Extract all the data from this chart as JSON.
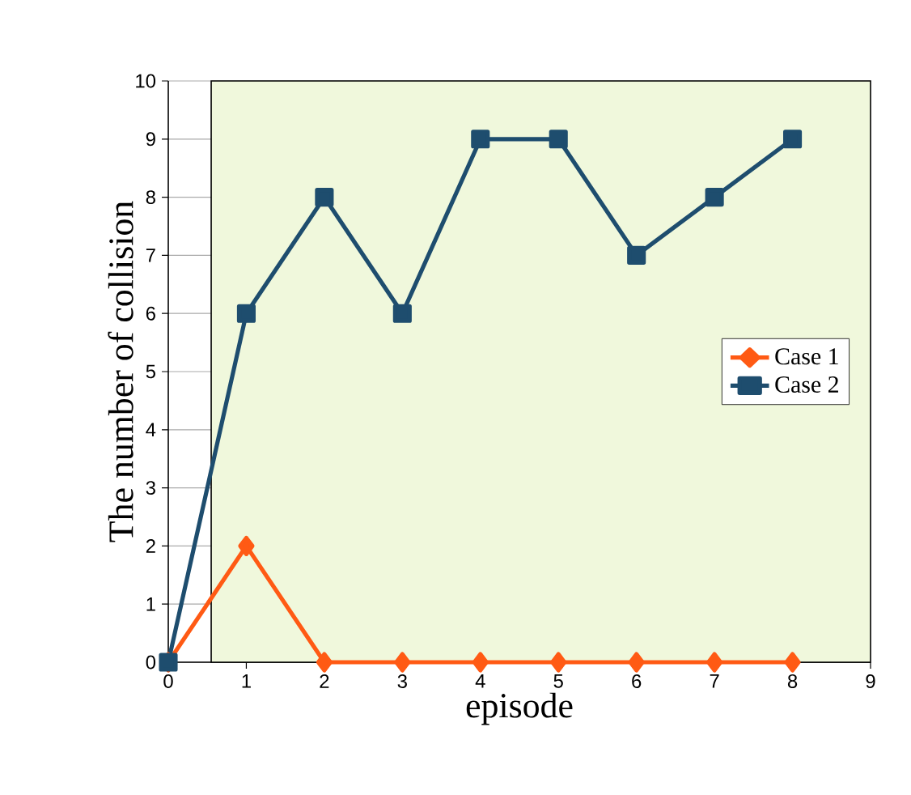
{
  "chart_data": {
    "type": "line",
    "xlabel": "episode",
    "ylabel": "The number of collision",
    "x": [
      0,
      1,
      2,
      3,
      4,
      5,
      6,
      7,
      8
    ],
    "series": [
      {
        "name": "Case 1",
        "color": "#ff5a14",
        "marker": "diamond",
        "values": [
          0,
          2,
          0,
          0,
          0,
          0,
          0,
          0,
          0
        ]
      },
      {
        "name": "Case 2",
        "color": "#1e4d6e",
        "marker": "square",
        "values": [
          0,
          6,
          8,
          6,
          9,
          9,
          7,
          8,
          9
        ]
      }
    ],
    "xlim": [
      0,
      9
    ],
    "xticks": [
      0,
      1,
      2,
      3,
      4,
      5,
      6,
      7,
      8,
      9
    ],
    "ylim": [
      0,
      10
    ],
    "yticks": [
      0,
      1,
      2,
      3,
      4,
      5,
      6,
      7,
      8,
      9,
      10
    ],
    "bands": [
      {
        "axis": "x",
        "from": 0.55,
        "to": 9,
        "color": "#f0f8dc"
      }
    ],
    "grid": "y",
    "legend": "right"
  }
}
